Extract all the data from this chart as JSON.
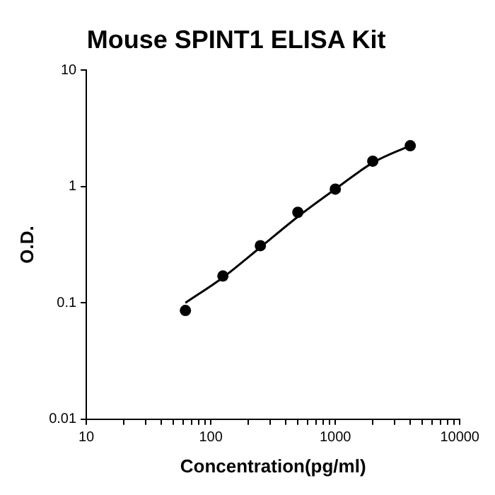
{
  "chart_data": {
    "type": "scatter",
    "title": "Mouse SPINT1 ELISA Kit",
    "xlabel": "Concentration(pg/ml)",
    "ylabel": "O.D.",
    "log": "xy",
    "grid": false,
    "legend": false,
    "marker": "circle",
    "x": [
      62.5,
      125,
      250,
      500,
      1000,
      2000,
      4000
    ],
    "series": [
      {
        "color": "#000000",
        "values": [
          0.086,
          0.17,
          0.31,
          0.6,
          0.95,
          1.65,
          2.24
        ]
      },
      {
        "type": "line",
        "color": "#000000",
        "marker": "none",
        "x": [
          62.5,
          125,
          250,
          500,
          1000,
          2000,
          4000
        ],
        "values": [
          0.1,
          0.165,
          0.3,
          0.55,
          0.95,
          1.6,
          2.25
        ]
      }
    ],
    "xlim": [
      10,
      10000
    ],
    "ylim": [
      0.01,
      10
    ],
    "xticks": [
      10,
      {
        "value": 20,
        "label": null
      },
      {
        "value": 30,
        "label": null
      },
      {
        "value": 40,
        "label": null
      },
      {
        "value": 50,
        "label": null
      },
      {
        "value": 60,
        "label": null
      },
      {
        "value": 70,
        "label": null
      },
      {
        "value": 80,
        "label": null
      },
      {
        "value": 90,
        "label": null
      },
      100,
      {
        "value": 200,
        "label": null
      },
      {
        "value": 300,
        "label": null
      },
      {
        "value": 400,
        "label": null
      },
      {
        "value": 500,
        "label": null
      },
      {
        "value": 600,
        "label": null
      },
      {
        "value": 700,
        "label": null
      },
      {
        "value": 800,
        "label": null
      },
      {
        "value": 900,
        "label": null
      },
      1000,
      {
        "value": 2000,
        "label": null
      },
      {
        "value": 3000,
        "label": null
      },
      {
        "value": 4000,
        "label": null
      },
      {
        "value": 5000,
        "label": null
      },
      {
        "value": 6000,
        "label": null
      },
      {
        "value": 7000,
        "label": null
      },
      {
        "value": 8000,
        "label": null
      },
      {
        "value": 9000,
        "label": null
      },
      10000
    ],
    "yticks": [
      0.01,
      0.1,
      1,
      10
    ]
  }
}
